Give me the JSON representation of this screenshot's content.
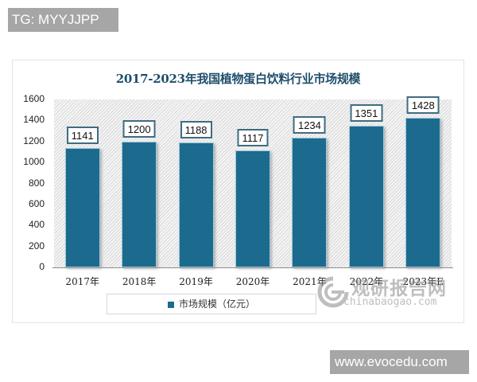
{
  "overlays": {
    "top_tag": "TG: MYYJJPP",
    "bottom_tag": "www.evocedu.com"
  },
  "watermark": {
    "cn": "观研报告网",
    "en": "chinabaogao.com"
  },
  "chart_data": {
    "type": "bar",
    "title": "2017-2023年我国植物蛋白饮料行业市场规模",
    "categories": [
      "2017年",
      "2018年",
      "2019年",
      "2020年",
      "2021年",
      "2022年",
      "2023年E"
    ],
    "series": [
      {
        "name": "市场规模（亿元）",
        "values": [
          1141,
          1200,
          1188,
          1117,
          1234,
          1351,
          1428
        ],
        "color": "#1c6b8e"
      }
    ],
    "xlabel": "",
    "ylabel": "",
    "ylim": [
      0,
      1600
    ],
    "yticks": [
      0,
      200,
      400,
      600,
      800,
      1000,
      1200,
      1400,
      1600
    ],
    "grid": false,
    "legend_position": "bottom",
    "data_labels": true,
    "colors": {
      "bar": "#1c6b8e",
      "title": "#1f4e6b",
      "label_border": "#3f6c80"
    }
  }
}
